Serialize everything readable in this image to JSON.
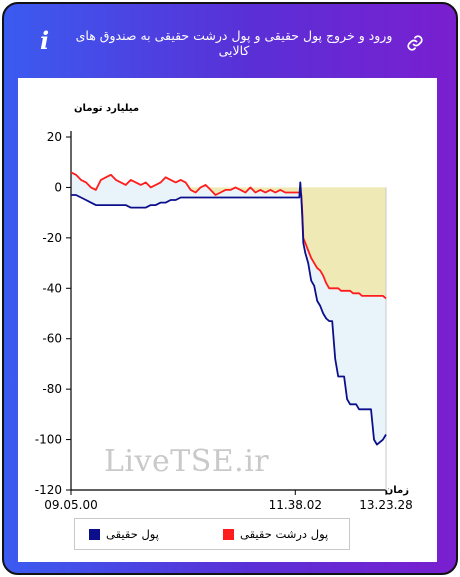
{
  "header": {
    "title": "ورود و خروج پول حقیقی و پول درشت حقیقی به صندوق های کالایی",
    "info_icon": "i",
    "link_icon": "link-icon"
  },
  "watermark": "LiveTSE.ir",
  "legend": {
    "items": [
      {
        "label": "پول حقیقی",
        "color": "#0b0f8c"
      },
      {
        "label": "پول درشت حقیقی",
        "color": "#ff1c1c"
      }
    ]
  },
  "colors": {
    "card_gradient_start": "#3b5bf0",
    "card_gradient_end": "#7a1fd0",
    "area_above_fill": "#efe9b5",
    "area_below_fill": "#e9f3fa"
  },
  "chart_data": {
    "type": "line",
    "title": "",
    "ylabel": "میلیارد تومان",
    "xlabel": "زمان",
    "ylim": [
      -120,
      20
    ],
    "yticks": [
      20,
      0,
      -20,
      -40,
      -60,
      -80,
      -100,
      -120
    ],
    "xticks": [
      "09.05.00",
      "11.38.02",
      "13.23.28"
    ],
    "grid": false,
    "legend_position": "bottom",
    "x_index": [
      0,
      5,
      10,
      15,
      20,
      25,
      30,
      35,
      40,
      45,
      50,
      55,
      60,
      65,
      70,
      75,
      80,
      85,
      90,
      95,
      100,
      105,
      110,
      115,
      120,
      125,
      130,
      135,
      140,
      145,
      150,
      155,
      160,
      165,
      170,
      175,
      180,
      185,
      190,
      195,
      200,
      205,
      210,
      215,
      220,
      225,
      229,
      230,
      231,
      232,
      233,
      235,
      238,
      241,
      244,
      247,
      250,
      253,
      256,
      259,
      262,
      265,
      268,
      271,
      274,
      277,
      280,
      283,
      286,
      289,
      292,
      295,
      298,
      301,
      304,
      307,
      310,
      313,
      316
    ],
    "series": [
      {
        "name": "پول حقیقی",
        "color": "#0b0f8c",
        "values": [
          -3,
          -3,
          -4,
          -5,
          -6,
          -7,
          -7,
          -7,
          -7,
          -7,
          -7,
          -7,
          -8,
          -8,
          -8,
          -8,
          -7,
          -7,
          -6,
          -6,
          -5,
          -5,
          -4,
          -4,
          -4,
          -4,
          -4,
          -4,
          -4,
          -4,
          -4,
          -4,
          -4,
          -4,
          -4,
          -4,
          -4,
          -4,
          -4,
          -4,
          -4,
          -4,
          -4,
          -4,
          -4,
          -4,
          -4,
          2,
          -4,
          -12,
          -22,
          -26,
          -30,
          -37,
          -39,
          -45,
          -47,
          -50,
          -52,
          -53,
          -53,
          -68,
          -75,
          -75,
          -75,
          -84,
          -86,
          -86,
          -86,
          -88,
          -88,
          -88,
          -88,
          -88,
          -100,
          -102,
          -101,
          -100,
          -98
        ]
      },
      {
        "name": "پول درشت حقیقی",
        "color": "#ff1c1c",
        "values": [
          6,
          5,
          3,
          2,
          0,
          -1,
          3,
          4,
          5,
          3,
          2,
          1,
          3,
          2,
          1,
          2,
          0,
          1,
          2,
          4,
          3,
          2,
          3,
          2,
          -1,
          -2,
          0,
          1,
          -1,
          -3,
          -2,
          -1,
          -1,
          0,
          -1,
          -2,
          0,
          -2,
          -1,
          -2,
          -1,
          -2,
          -1,
          -2,
          -2,
          -2,
          -2,
          -2,
          -3,
          -10,
          -20,
          -22,
          -25,
          -28,
          -30,
          -32,
          -33,
          -35,
          -38,
          -40,
          -40,
          -40,
          -40,
          -41,
          -41,
          -41,
          -41,
          -42,
          -42,
          -42,
          -43,
          -43,
          -43,
          -43,
          -43,
          -43,
          -43,
          -43,
          -44
        ]
      }
    ]
  }
}
